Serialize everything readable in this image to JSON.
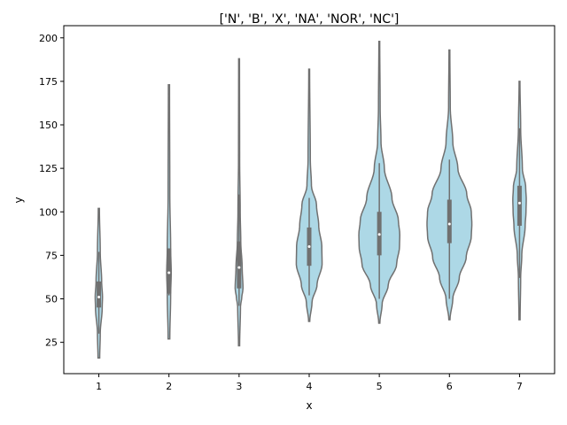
{
  "chart_data": {
    "type": "violin",
    "title": "['N', 'B', 'X', 'NA', 'NOR', 'NC']",
    "xlabel": "x",
    "ylabel": "y",
    "ylim": [
      7,
      207
    ],
    "yticks": [
      25,
      50,
      75,
      100,
      125,
      150,
      175,
      200
    ],
    "categories": [
      "1",
      "2",
      "3",
      "4",
      "5",
      "6",
      "7"
    ],
    "colors": {
      "violin_fill": "#add8e6",
      "violin_edge": "#707070",
      "median_marker": "#ffffff"
    },
    "violins": [
      {
        "x": "1",
        "min": 16,
        "q1": 45,
        "median": 51,
        "q3": 60,
        "max": 102,
        "whisker_low": 30,
        "whisker_high": 77,
        "profile": [
          [
            16,
            0.03
          ],
          [
            30,
            0.05
          ],
          [
            45,
            0.12
          ],
          [
            51,
            0.13
          ],
          [
            60,
            0.1
          ],
          [
            77,
            0.05
          ],
          [
            102,
            0.02
          ]
        ]
      },
      {
        "x": "2",
        "min": 27,
        "q1": 53,
        "median": 65,
        "q3": 79,
        "max": 173,
        "whisker_low": 52,
        "whisker_high": 79,
        "profile": [
          [
            27,
            0.03
          ],
          [
            52,
            0.06
          ],
          [
            65,
            0.08
          ],
          [
            79,
            0.06
          ],
          [
            110,
            0.03
          ],
          [
            173,
            0.02
          ]
        ]
      },
      {
        "x": "3",
        "min": 23,
        "q1": 56,
        "median": 68,
        "q3": 83,
        "max": 188,
        "whisker_low": 46,
        "whisker_high": 110,
        "profile": [
          [
            23,
            0.02
          ],
          [
            46,
            0.05
          ],
          [
            50,
            0.09
          ],
          [
            56,
            0.14
          ],
          [
            68,
            0.11
          ],
          [
            83,
            0.06
          ],
          [
            100,
            0.04
          ],
          [
            130,
            0.02
          ],
          [
            188,
            0.015
          ]
        ]
      },
      {
        "x": "4",
        "min": 37,
        "q1": 69,
        "median": 80,
        "q3": 91,
        "max": 182,
        "whisker_low": 52,
        "whisker_high": 108,
        "profile": [
          [
            37,
            0.02
          ],
          [
            48,
            0.1
          ],
          [
            58,
            0.28
          ],
          [
            70,
            0.46
          ],
          [
            80,
            0.45
          ],
          [
            92,
            0.34
          ],
          [
            104,
            0.26
          ],
          [
            115,
            0.08
          ],
          [
            130,
            0.04
          ],
          [
            182,
            0.015
          ]
        ]
      },
      {
        "x": "5",
        "min": 36,
        "q1": 75,
        "median": 87,
        "q3": 100,
        "max": 198,
        "whisker_low": 50,
        "whisker_high": 128,
        "profile": [
          [
            36,
            0.02
          ],
          [
            47,
            0.1
          ],
          [
            58,
            0.32
          ],
          [
            70,
            0.62
          ],
          [
            80,
            0.72
          ],
          [
            87,
            0.73
          ],
          [
            95,
            0.68
          ],
          [
            108,
            0.45
          ],
          [
            125,
            0.18
          ],
          [
            140,
            0.06
          ],
          [
            160,
            0.03
          ],
          [
            198,
            0.015
          ]
        ]
      },
      {
        "x": "6",
        "min": 38,
        "q1": 82,
        "median": 93,
        "q3": 107,
        "max": 193,
        "whisker_low": 50,
        "whisker_high": 130,
        "profile": [
          [
            38,
            0.02
          ],
          [
            50,
            0.12
          ],
          [
            62,
            0.35
          ],
          [
            74,
            0.6
          ],
          [
            86,
            0.78
          ],
          [
            93,
            0.8
          ],
          [
            100,
            0.78
          ],
          [
            110,
            0.62
          ],
          [
            125,
            0.3
          ],
          [
            140,
            0.12
          ],
          [
            160,
            0.03
          ],
          [
            193,
            0.015
          ]
        ]
      },
      {
        "x": "7",
        "min": 38,
        "q1": 92,
        "median": 105,
        "q3": 115,
        "max": 175,
        "whisker_low": 62,
        "whisker_high": 148,
        "profile": [
          [
            38,
            0.02
          ],
          [
            62,
            0.04
          ],
          [
            75,
            0.08
          ],
          [
            92,
            0.2
          ],
          [
            100,
            0.23
          ],
          [
            107,
            0.24
          ],
          [
            114,
            0.22
          ],
          [
            125,
            0.1
          ],
          [
            148,
            0.04
          ],
          [
            175,
            0.015
          ]
        ]
      }
    ]
  }
}
